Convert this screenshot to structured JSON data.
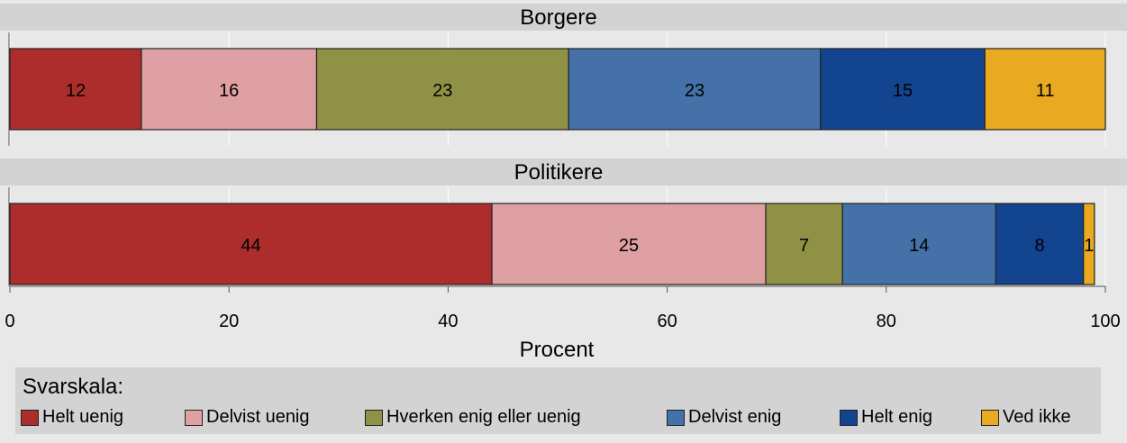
{
  "chart_data": {
    "type": "bar",
    "orientation": "horizontal",
    "stacked": true,
    "xlabel": "Procent",
    "xlim": [
      0,
      100
    ],
    "xticks": [
      "0",
      "20",
      "40",
      "60",
      "80",
      "100"
    ],
    "grid": true,
    "panels": [
      {
        "title": "Borgere",
        "values": [
          12,
          16,
          23,
          23,
          15,
          11
        ],
        "labels": [
          "12",
          "16",
          "23",
          "23",
          "15",
          "11"
        ]
      },
      {
        "title": "Politikere",
        "values": [
          44,
          25,
          7,
          14,
          8,
          1
        ],
        "labels": [
          "44",
          "25",
          "7",
          "14",
          "8",
          "1"
        ]
      }
    ],
    "series": [
      {
        "name": "Helt uenig",
        "color": "#ad2d2d"
      },
      {
        "name": "Delvist uenig",
        "color": "#dfa0a3"
      },
      {
        "name": "Hverken enig eller uenig",
        "color": "#8f9145"
      },
      {
        "name": "Delvist enig",
        "color": "#4371a8"
      },
      {
        "name": "Helt enig",
        "color": "#134490"
      },
      {
        "name": "Ved ikke",
        "color": "#e9a920"
      }
    ],
    "legend": {
      "title": "Svarskala:",
      "position": "bottom"
    }
  }
}
